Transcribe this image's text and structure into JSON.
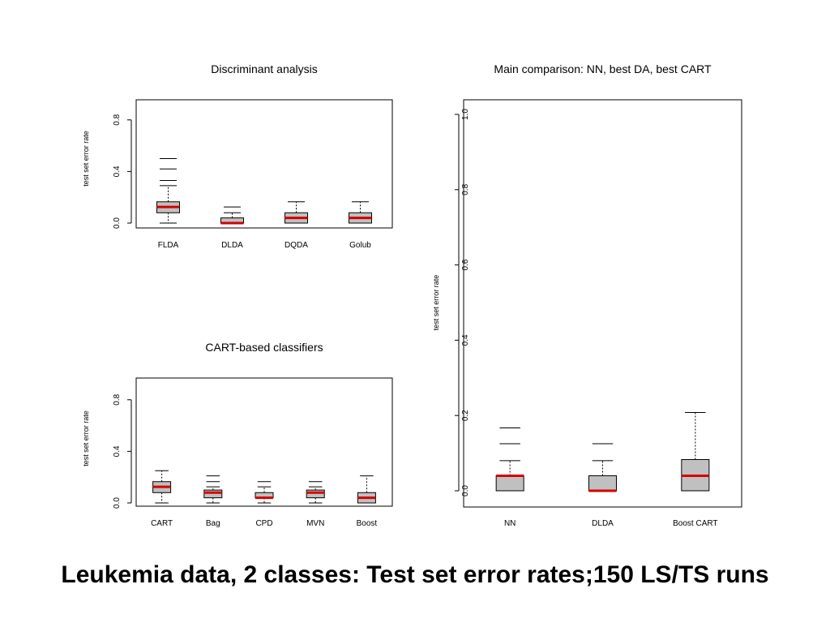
{
  "caption": "Leukemia data, 2 classes: Test set error rates;150 LS/TS runs",
  "colors": {
    "box_fill": "#c0c0c0",
    "median": "#d40000",
    "stroke": "#000000"
  },
  "chart_data": [
    {
      "type": "boxplot",
      "title": "Discriminant analysis",
      "ylabel": "test set error rate",
      "ylim": [
        0,
        1.0
      ],
      "yticks": [
        "0.0",
        "0.4",
        "0.8"
      ],
      "categories": [
        "FLDA",
        "DLDA",
        "DQDA",
        "Golub"
      ],
      "boxes": [
        {
          "label": "FLDA",
          "q1": 0.08,
          "median": 0.125,
          "q3": 0.165,
          "whisker_low": 0.0,
          "whisker_high": 0.29,
          "outliers": [
            0.33,
            0.42,
            0.5
          ]
        },
        {
          "label": "DLDA",
          "q1": 0.0,
          "median": 0.0,
          "q3": 0.04,
          "whisker_low": 0.0,
          "whisker_high": 0.08,
          "outliers": [
            0.125
          ]
        },
        {
          "label": "DQDA",
          "q1": 0.0,
          "median": 0.04,
          "q3": 0.08,
          "whisker_low": 0.0,
          "whisker_high": 0.165,
          "outliers": []
        },
        {
          "label": "Golub",
          "q1": 0.0,
          "median": 0.04,
          "q3": 0.08,
          "whisker_low": 0.0,
          "whisker_high": 0.165,
          "outliers": []
        }
      ]
    },
    {
      "type": "boxplot",
      "title": "CART-based classifiers",
      "ylabel": "test set error rate",
      "ylim": [
        0,
        1.0
      ],
      "yticks": [
        "0.0",
        "0.4",
        "0.8"
      ],
      "categories": [
        "CART",
        "Bag",
        "CPD",
        "MVN",
        "Boost"
      ],
      "boxes": [
        {
          "label": "CART",
          "q1": 0.08,
          "median": 0.125,
          "q3": 0.165,
          "whisker_low": 0.0,
          "whisker_high": 0.25,
          "outliers": []
        },
        {
          "label": "Bag",
          "q1": 0.04,
          "median": 0.08,
          "q3": 0.1,
          "whisker_low": 0.0,
          "whisker_high": 0.125,
          "outliers": [
            0.165,
            0.21
          ]
        },
        {
          "label": "CPD",
          "q1": 0.04,
          "median": 0.04,
          "q3": 0.08,
          "whisker_low": 0.0,
          "whisker_high": 0.125,
          "outliers": [
            0.165
          ]
        },
        {
          "label": "MVN",
          "q1": 0.04,
          "median": 0.08,
          "q3": 0.1,
          "whisker_low": 0.0,
          "whisker_high": 0.125,
          "outliers": [
            0.165
          ]
        },
        {
          "label": "Boost",
          "q1": 0.0,
          "median": 0.04,
          "q3": 0.08,
          "whisker_low": 0.0,
          "whisker_high": 0.21,
          "outliers": []
        }
      ]
    },
    {
      "type": "boxplot",
      "title": "Main comparison: NN, best DA, best CART",
      "ylabel": "test set error rate",
      "ylim": [
        0,
        1.0
      ],
      "yticks": [
        "0.0",
        "0.2",
        "0.4",
        "0.6",
        "0.8",
        "1.0"
      ],
      "categories": [
        "NN",
        "DLDA",
        "Boost CART"
      ],
      "boxes": [
        {
          "label": "NN",
          "q1": 0.0,
          "median": 0.04,
          "q3": 0.04,
          "whisker_low": 0.0,
          "whisker_high": 0.08,
          "outliers": [
            0.125,
            0.167
          ]
        },
        {
          "label": "DLDA",
          "q1": 0.0,
          "median": 0.0,
          "q3": 0.04,
          "whisker_low": 0.0,
          "whisker_high": 0.08,
          "outliers": [
            0.125
          ]
        },
        {
          "label": "Boost CART",
          "q1": 0.0,
          "median": 0.04,
          "q3": 0.083,
          "whisker_low": 0.0,
          "whisker_high": 0.208,
          "outliers": []
        }
      ]
    }
  ]
}
